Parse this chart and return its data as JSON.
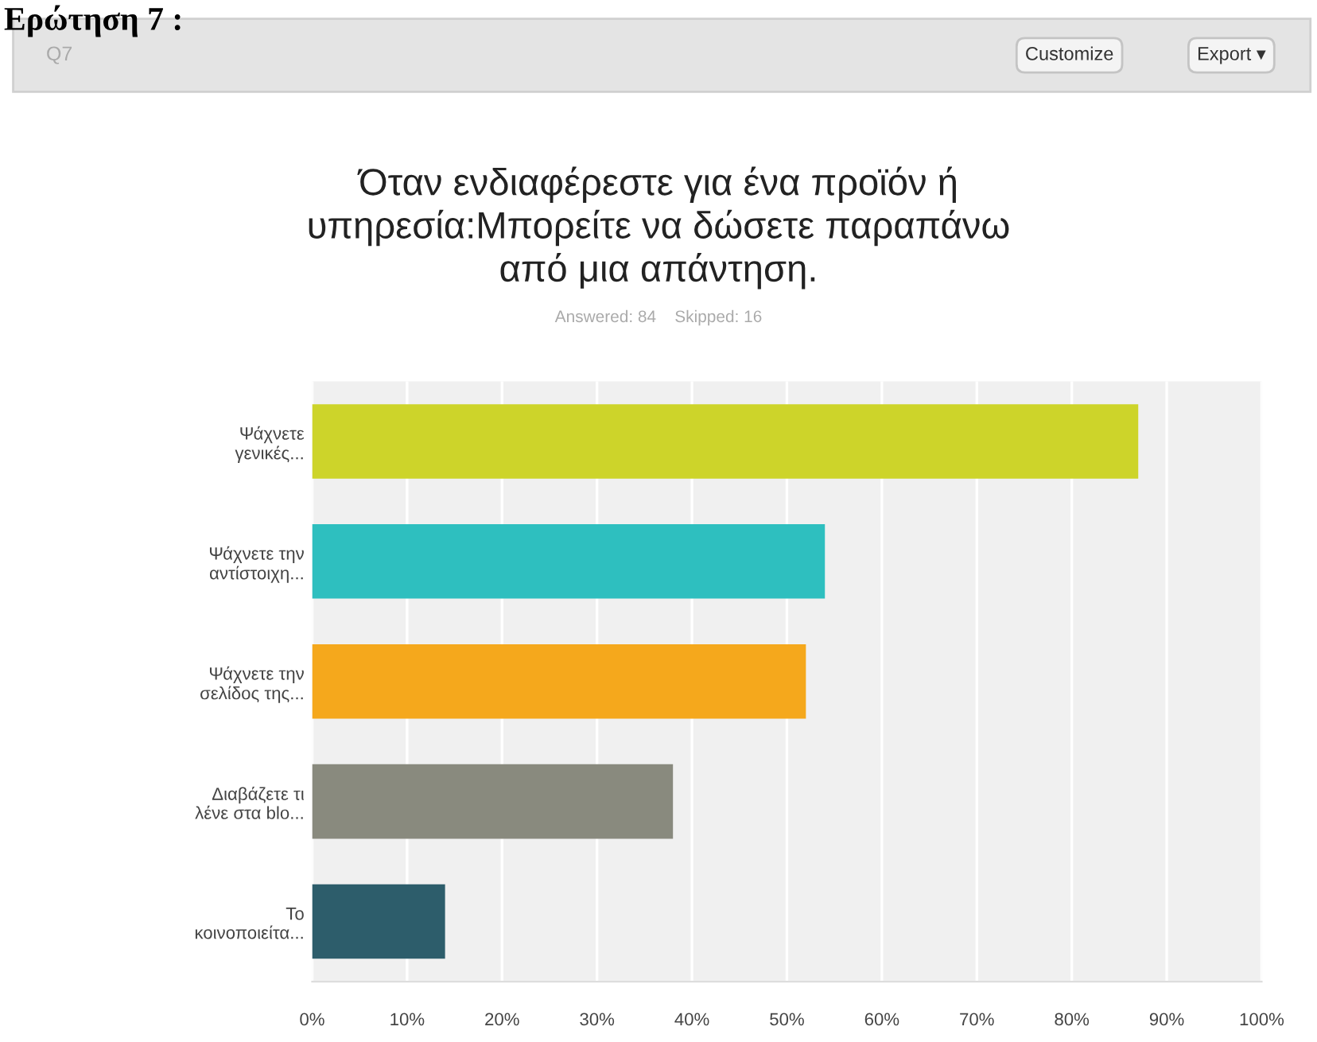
{
  "chart_data": {
    "type": "bar",
    "orientation": "horizontal",
    "title": "Όταν ενδιαφέρεστε για ένα προϊόν ή\nυπηρεσία:Μπορείτε να δώσετε παραπάνω\nαπό μια απάντηση.",
    "subtitle": "Answered: 84    Skipped: 16",
    "annotations": [
      "Ερώτηση 7 :",
      "Q7",
      "Customize",
      "Export ▾"
    ],
    "categories": [
      "Ψάχνετε\nγενικές...",
      "Ψάχνετε την\nαντίστοιχη...",
      "Ψάχνετε την\nσελίδος της...",
      "Διαβάζετε τι\nλένε στα blo...",
      "Το\nκοινοποιείτα..."
    ],
    "values": [
      87,
      54,
      52,
      38,
      14
    ],
    "colors": [
      "#cdd42a",
      "#2ebfbf",
      "#f5a81c",
      "#898a7e",
      "#2d5d6b"
    ],
    "xlim": [
      0,
      100
    ],
    "xticks": [
      {
        "value": 0,
        "label": "0%"
      },
      {
        "value": 10,
        "label": "10%"
      },
      {
        "value": 20,
        "label": "20%"
      },
      {
        "value": 30,
        "label": "30%"
      },
      {
        "value": 40,
        "label": "40%"
      },
      {
        "value": 50,
        "label": "50%"
      },
      {
        "value": 60,
        "label": "60%"
      },
      {
        "value": 70,
        "label": "70%"
      },
      {
        "value": 80,
        "label": "80%"
      },
      {
        "value": 90,
        "label": "90%"
      },
      {
        "value": 100,
        "label": "100%"
      }
    ],
    "grid": "x",
    "legend": false
  }
}
